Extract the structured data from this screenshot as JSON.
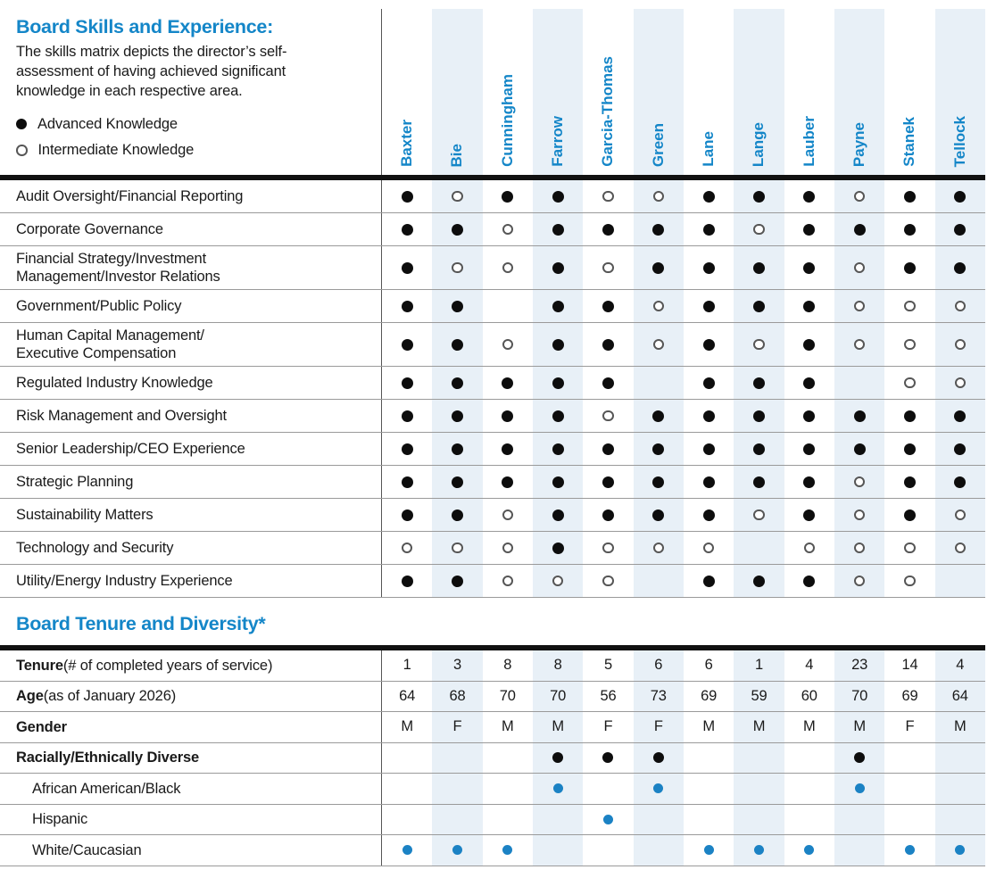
{
  "colors": {
    "accent": "#1486c8",
    "dot_blue": "#1b82c4",
    "band": "#e8f0f7",
    "line_thin": "#9a9a9a",
    "line_thick": "#111111"
  },
  "skills_section": {
    "title": "Board Skills and Experience:",
    "description": "The skills matrix depicts the director’s self-assessment of having achieved significant knowledge in each respective area.",
    "legend": [
      {
        "symbol": "advanced-filled-circle",
        "label": "Advanced Knowledge"
      },
      {
        "symbol": "intermediate-open-circle",
        "label": "Intermediate Knowledge"
      }
    ],
    "directors": [
      "Baxter",
      "Bie",
      "Cunningham",
      "Farrow",
      "Garcia-Thomas",
      "Green",
      "Lane",
      "Lange",
      "Lauber",
      "Payne",
      "Stanek",
      "Tellock"
    ],
    "rows": [
      {
        "label": "Audit Oversight/Financial Reporting",
        "values": [
          "A",
          "I",
          "A",
          "A",
          "I",
          "I",
          "A",
          "A",
          "A",
          "I",
          "A",
          "A"
        ]
      },
      {
        "label": "Corporate Governance",
        "values": [
          "A",
          "A",
          "I",
          "A",
          "A",
          "A",
          "A",
          "I",
          "A",
          "A",
          "A",
          "A"
        ]
      },
      {
        "label": "Financial Strategy/Investment\nManagement/Investor Relations",
        "values": [
          "A",
          "I",
          "I",
          "A",
          "I",
          "A",
          "A",
          "A",
          "A",
          "I",
          "A",
          "A"
        ]
      },
      {
        "label": "Government/Public Policy",
        "values": [
          "A",
          "A",
          "",
          "A",
          "A",
          "I",
          "A",
          "A",
          "A",
          "I",
          "I",
          "I"
        ]
      },
      {
        "label": "Human Capital Management/\nExecutive Compensation",
        "values": [
          "A",
          "A",
          "I",
          "A",
          "A",
          "I",
          "A",
          "I",
          "A",
          "I",
          "I",
          "I"
        ]
      },
      {
        "label": "Regulated Industry Knowledge",
        "values": [
          "A",
          "A",
          "A",
          "A",
          "A",
          "",
          "A",
          "A",
          "A",
          "",
          "I",
          "I"
        ]
      },
      {
        "label": "Risk Management and Oversight",
        "values": [
          "A",
          "A",
          "A",
          "A",
          "I",
          "A",
          "A",
          "A",
          "A",
          "A",
          "A",
          "A"
        ]
      },
      {
        "label": "Senior Leadership/CEO Experience",
        "values": [
          "A",
          "A",
          "A",
          "A",
          "A",
          "A",
          "A",
          "A",
          "A",
          "A",
          "A",
          "A"
        ]
      },
      {
        "label": "Strategic Planning",
        "values": [
          "A",
          "A",
          "A",
          "A",
          "A",
          "A",
          "A",
          "A",
          "A",
          "I",
          "A",
          "A"
        ]
      },
      {
        "label": "Sustainability Matters",
        "values": [
          "A",
          "A",
          "I",
          "A",
          "A",
          "A",
          "A",
          "I",
          "A",
          "I",
          "A",
          "I"
        ]
      },
      {
        "label": "Technology and Security",
        "values": [
          "I",
          "I",
          "I",
          "A",
          "I",
          "I",
          "I",
          "",
          "I",
          "I",
          "I",
          "I"
        ]
      },
      {
        "label": "Utility/Energy Industry Experience",
        "values": [
          "A",
          "A",
          "I",
          "I",
          "I",
          "",
          "A",
          "A",
          "A",
          "I",
          "I",
          ""
        ]
      }
    ]
  },
  "tenure_section": {
    "title": "Board Tenure and Diversity*",
    "rows": [
      {
        "bold": "Tenure",
        "rest": " (# of completed years of service)",
        "type": "text",
        "values": [
          "1",
          "3",
          "8",
          "8",
          "5",
          "6",
          "6",
          "1",
          "4",
          "23",
          "14",
          "4"
        ]
      },
      {
        "bold": "Age",
        "rest": " (as of January 2026)",
        "type": "text",
        "values": [
          "64",
          "68",
          "70",
          "70",
          "56",
          "73",
          "69",
          "59",
          "60",
          "70",
          "69",
          "64"
        ]
      },
      {
        "bold": "Gender",
        "rest": "",
        "type": "text",
        "values": [
          "M",
          "F",
          "M",
          "M",
          "F",
          "F",
          "M",
          "M",
          "M",
          "M",
          "F",
          "M"
        ]
      },
      {
        "bold": "Racially/Ethnically Diverse",
        "rest": "",
        "type": "dot-black",
        "values": [
          "",
          "",
          "",
          "Y",
          "Y",
          "Y",
          "",
          "",
          "",
          "Y",
          "",
          ""
        ]
      },
      {
        "label": "African American/Black",
        "indent": true,
        "type": "dot-blue",
        "values": [
          "",
          "",
          "",
          "Y",
          "",
          "Y",
          "",
          "",
          "",
          "Y",
          "",
          ""
        ]
      },
      {
        "label": "Hispanic",
        "indent": true,
        "type": "dot-blue",
        "values": [
          "",
          "",
          "",
          "",
          "Y",
          "",
          "",
          "",
          "",
          "",
          "",
          ""
        ]
      },
      {
        "label": "White/Caucasian",
        "indent": true,
        "type": "dot-blue",
        "values": [
          "Y",
          "Y",
          "Y",
          "",
          "",
          "",
          "Y",
          "Y",
          "Y",
          "",
          "Y",
          "Y"
        ]
      }
    ]
  }
}
